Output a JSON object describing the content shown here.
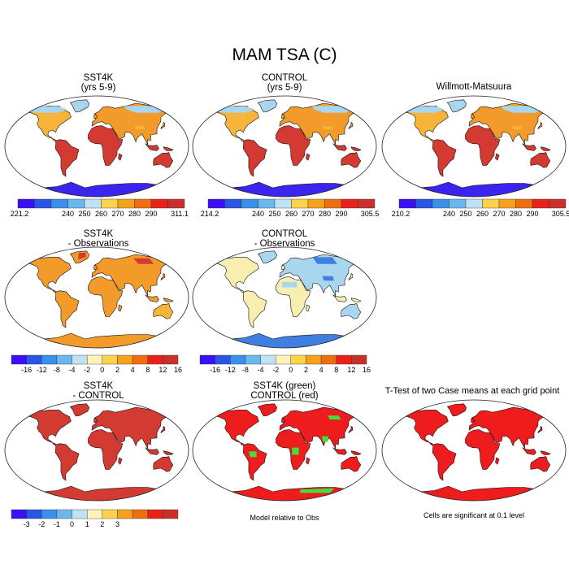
{
  "figure": {
    "title": "MAM TSA (C)"
  },
  "palettes": {
    "abs": [
      "#3b10f5",
      "#2a56e6",
      "#3a8fe8",
      "#6ab8ee",
      "#bfe3f5",
      "#fbd24b",
      "#f6a11c",
      "#ef6e12",
      "#e8221a",
      "#c9302c"
    ],
    "diff": [
      "#3b10f5",
      "#2a56e6",
      "#3a8fe8",
      "#6ab8ee",
      "#bfe3f5",
      "#fff3b8",
      "#fbd24b",
      "#f6a11c",
      "#ef6e12",
      "#e8221a",
      "#c9302c"
    ],
    "land_colors": {
      "warm_red": "#d23a32",
      "orange": "#f29a2a",
      "yellow_orange": "#f6b43a",
      "pale": "#f7eeb0",
      "light_blue": "#a9d6ef",
      "blue": "#3f7fe0",
      "deep_blue": "#3b24ee",
      "green": "#3fe23a",
      "solid_red": "#ee1c1c"
    }
  },
  "panels": [
    {
      "id": "sst4k",
      "title": [
        "SST4K",
        "(yrs 5-9)"
      ],
      "style": "abs",
      "colorbar": {
        "palette": "abs",
        "ticks": [
          "221.2",
          "240",
          "250",
          "260",
          "270",
          "280",
          "290",
          "311.1"
        ]
      }
    },
    {
      "id": "control",
      "title": [
        "CONTROL",
        "(yrs 5-9)"
      ],
      "style": "abs",
      "colorbar": {
        "palette": "abs",
        "ticks": [
          "214.2",
          "240",
          "250",
          "260",
          "270",
          "280",
          "290",
          "305.5"
        ]
      }
    },
    {
      "id": "obs",
      "title": [
        "Willmott-Matsuura"
      ],
      "style": "abs",
      "colorbar": {
        "palette": "abs",
        "ticks": [
          "210.2",
          "240",
          "250",
          "260",
          "270",
          "280",
          "290",
          "305.5"
        ]
      }
    },
    {
      "id": "sst4k-obs",
      "title": [
        "SST4K",
        "- Observations"
      ],
      "style": "bias_warm",
      "colorbar": {
        "palette": "diff",
        "ticks": [
          "-16",
          "-12",
          "-8",
          "-4",
          "-2",
          "0",
          "2",
          "4",
          "8",
          "12",
          "16"
        ]
      }
    },
    {
      "id": "control-obs",
      "title": [
        "CONTROL",
        "- Observations"
      ],
      "style": "bias_mixed",
      "colorbar": {
        "palette": "diff",
        "ticks": [
          "-16",
          "-12",
          "-8",
          "-4",
          "-2",
          "0",
          "2",
          "4",
          "8",
          "12",
          "16"
        ]
      }
    },
    {
      "id": "sst4k-control",
      "title": [
        "SST4K",
        "- CONTROL"
      ],
      "style": "diff_red",
      "colorbar": {
        "palette": "diff",
        "ticks": [
          "-3",
          "-2",
          "-1",
          "0",
          "1",
          "2",
          "3"
        ]
      }
    },
    {
      "id": "green-red",
      "title": [
        "SST4K (green)",
        "CONTROL (red)"
      ],
      "style": "green_red",
      "note": "Model relative to Obs"
    },
    {
      "id": "ttest",
      "title": [
        "T-Test of two Case means at each grid point"
      ],
      "style": "ttest",
      "note": "Cells are significant at 0.1 level"
    }
  ]
}
